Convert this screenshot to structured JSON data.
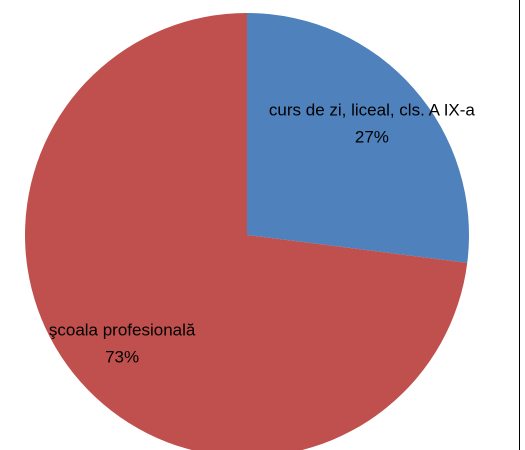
{
  "chart_data": {
    "type": "pie",
    "categories": [
      "curs de zi, liceal, cls. A IX-a",
      "şcoala profesională"
    ],
    "values": [
      27,
      73
    ],
    "value_labels": [
      "27%",
      "73%"
    ],
    "colors": [
      "#4f81bd",
      "#c0504d"
    ]
  }
}
